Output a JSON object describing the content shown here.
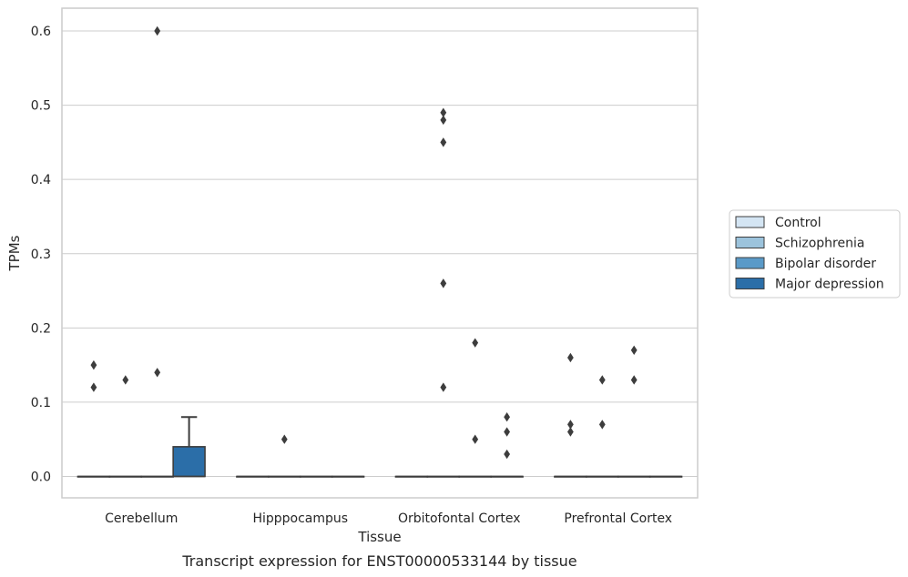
{
  "chart_data": {
    "type": "box",
    "xlabel": "Tissue",
    "ylabel": "TPMs",
    "caption": "Transcript expression for ENST00000533144 by tissue",
    "ylim": [
      -0.03,
      0.63
    ],
    "yticks": [
      "0.0",
      "0.1",
      "0.2",
      "0.3",
      "0.4",
      "0.5",
      "0.6"
    ],
    "grid": true,
    "legend_position": "right",
    "categories": [
      "Cerebellum",
      "Hipppocampus",
      "Orbitofontal Cortex",
      "Prefrontal Cortex"
    ],
    "series": [
      {
        "name": "Control",
        "color": "#d4e5f3",
        "boxes": [
          {
            "q1": 0,
            "median": 0,
            "q3": 0,
            "whisker_low": 0,
            "whisker_high": 0,
            "outliers": [
              0.15,
              0.12
            ]
          },
          {
            "q1": 0,
            "median": 0,
            "q3": 0,
            "whisker_low": 0,
            "whisker_high": 0,
            "outliers": []
          },
          {
            "q1": 0,
            "median": 0,
            "q3": 0,
            "whisker_low": 0,
            "whisker_high": 0,
            "outliers": []
          },
          {
            "q1": 0,
            "median": 0,
            "q3": 0,
            "whisker_low": 0,
            "whisker_high": 0,
            "outliers": [
              0.16,
              0.07,
              0.06
            ]
          }
        ]
      },
      {
        "name": "Schizophrenia",
        "color": "#9cc3dc",
        "boxes": [
          {
            "q1": 0,
            "median": 0,
            "q3": 0,
            "whisker_low": 0,
            "whisker_high": 0,
            "outliers": [
              0.13
            ]
          },
          {
            "q1": 0,
            "median": 0,
            "q3": 0,
            "whisker_low": 0,
            "whisker_high": 0,
            "outliers": [
              0.05
            ]
          },
          {
            "q1": 0,
            "median": 0,
            "q3": 0,
            "whisker_low": 0,
            "whisker_high": 0,
            "outliers": [
              0.49,
              0.48,
              0.45,
              0.26,
              0.12
            ]
          },
          {
            "q1": 0,
            "median": 0,
            "q3": 0,
            "whisker_low": 0,
            "whisker_high": 0,
            "outliers": [
              0.13,
              0.07
            ]
          }
        ]
      },
      {
        "name": "Bipolar disorder",
        "color": "#5a9ac8",
        "boxes": [
          {
            "q1": 0,
            "median": 0,
            "q3": 0,
            "whisker_low": 0,
            "whisker_high": 0,
            "outliers": [
              0.6,
              0.14
            ]
          },
          {
            "q1": 0,
            "median": 0,
            "q3": 0,
            "whisker_low": 0,
            "whisker_high": 0,
            "outliers": []
          },
          {
            "q1": 0,
            "median": 0,
            "q3": 0,
            "whisker_low": 0,
            "whisker_high": 0,
            "outliers": [
              0.18,
              0.05
            ]
          },
          {
            "q1": 0,
            "median": 0,
            "q3": 0,
            "whisker_low": 0,
            "whisker_high": 0,
            "outliers": [
              0.17,
              0.13
            ]
          }
        ]
      },
      {
        "name": "Major depression",
        "color": "#2b6ea8",
        "boxes": [
          {
            "q1": 0,
            "median": 0,
            "q3": 0.04,
            "whisker_low": 0,
            "whisker_high": 0.08,
            "outliers": []
          },
          {
            "q1": 0,
            "median": 0,
            "q3": 0,
            "whisker_low": 0,
            "whisker_high": 0,
            "outliers": []
          },
          {
            "q1": 0,
            "median": 0,
            "q3": 0,
            "whisker_low": 0,
            "whisker_high": 0,
            "outliers": [
              0.08,
              0.06,
              0.03
            ]
          },
          {
            "q1": 0,
            "median": 0,
            "q3": 0,
            "whisker_low": 0,
            "whisker_high": 0,
            "outliers": []
          }
        ]
      }
    ]
  }
}
